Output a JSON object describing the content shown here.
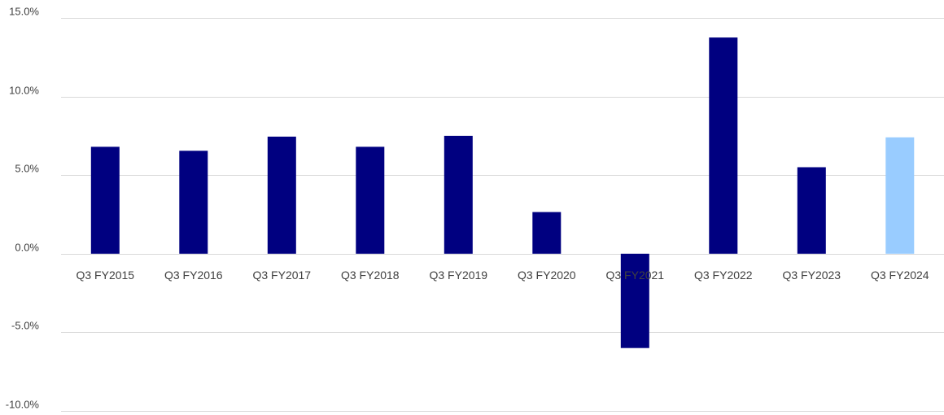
{
  "chart_data": {
    "type": "bar",
    "title": "",
    "xlabel": "",
    "ylabel": "",
    "categories": [
      "Q3 FY2015",
      "Q3 FY2016",
      "Q3 FY2017",
      "Q3 FY2018",
      "Q3 FY2019",
      "Q3 FY2020",
      "Q3 FY2021",
      "Q3 FY2022",
      "Q3 FY2023",
      "Q3 FY2024"
    ],
    "series": [
      {
        "values": [
          6.8,
          6.55,
          7.45,
          6.8,
          7.5,
          2.65,
          -6.0,
          13.75,
          5.5,
          7.4
        ]
      }
    ],
    "ylim": [
      -10,
      15
    ],
    "yticks": [
      15,
      10,
      5,
      0,
      -5,
      -10
    ],
    "ytick_labels": [
      "15.0%",
      "10.0%",
      "5.0%",
      "0.0%",
      "-5.0%",
      "-10.0%"
    ],
    "grid": true,
    "legend": "none",
    "colors": {
      "bar": "#000080",
      "highlight_bar": "#99ccff",
      "grid": "#d9d9d9",
      "text": "#404040"
    },
    "highlight_index": 9
  }
}
